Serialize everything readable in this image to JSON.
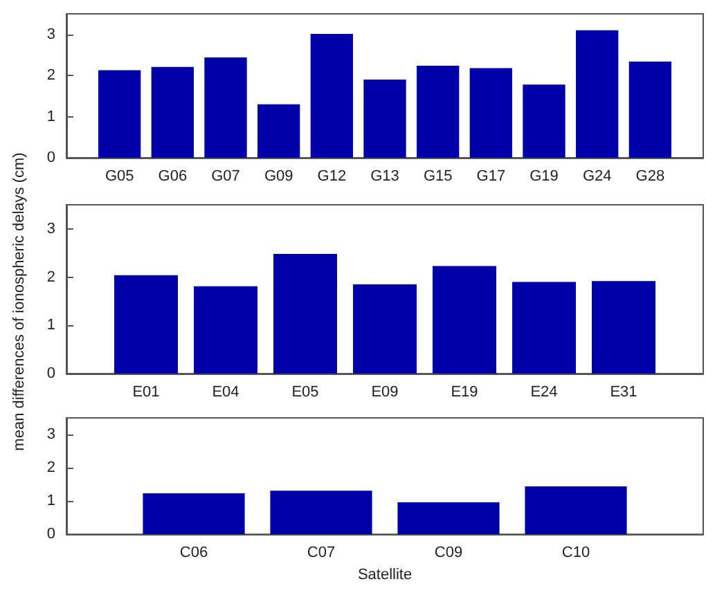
{
  "chart_data": [
    {
      "type": "bar",
      "categories": [
        "G05",
        "G06",
        "G07",
        "G09",
        "G12",
        "G13",
        "G15",
        "G17",
        "G19",
        "G24",
        "G28"
      ],
      "values": [
        2.13,
        2.21,
        2.44,
        1.3,
        3.01,
        1.9,
        2.24,
        2.18,
        1.78,
        3.1,
        2.34
      ],
      "color": "#0000a8",
      "ylim": [
        0,
        3.5
      ],
      "yticks": [
        0,
        1,
        2,
        3
      ],
      "grid": false
    },
    {
      "type": "bar",
      "ylabel": "mean differences of ionospheric delays (cm)",
      "categories": [
        "E01",
        "E04",
        "E05",
        "E09",
        "E19",
        "E24",
        "E31"
      ],
      "values": [
        2.04,
        1.81,
        2.48,
        1.85,
        2.23,
        1.9,
        1.92
      ],
      "color": "#0000a8",
      "ylim": [
        0,
        3.5
      ],
      "yticks": [
        0,
        1,
        2,
        3
      ],
      "grid": false
    },
    {
      "type": "bar",
      "xlabel": "Satellite",
      "categories": [
        "C06",
        "C07",
        "C09",
        "C10"
      ],
      "values": [
        1.23,
        1.31,
        0.96,
        1.44
      ],
      "color": "#0000a8",
      "ylim": [
        0,
        3.5
      ],
      "yticks": [
        0,
        1,
        2,
        3
      ],
      "grid": false
    }
  ]
}
